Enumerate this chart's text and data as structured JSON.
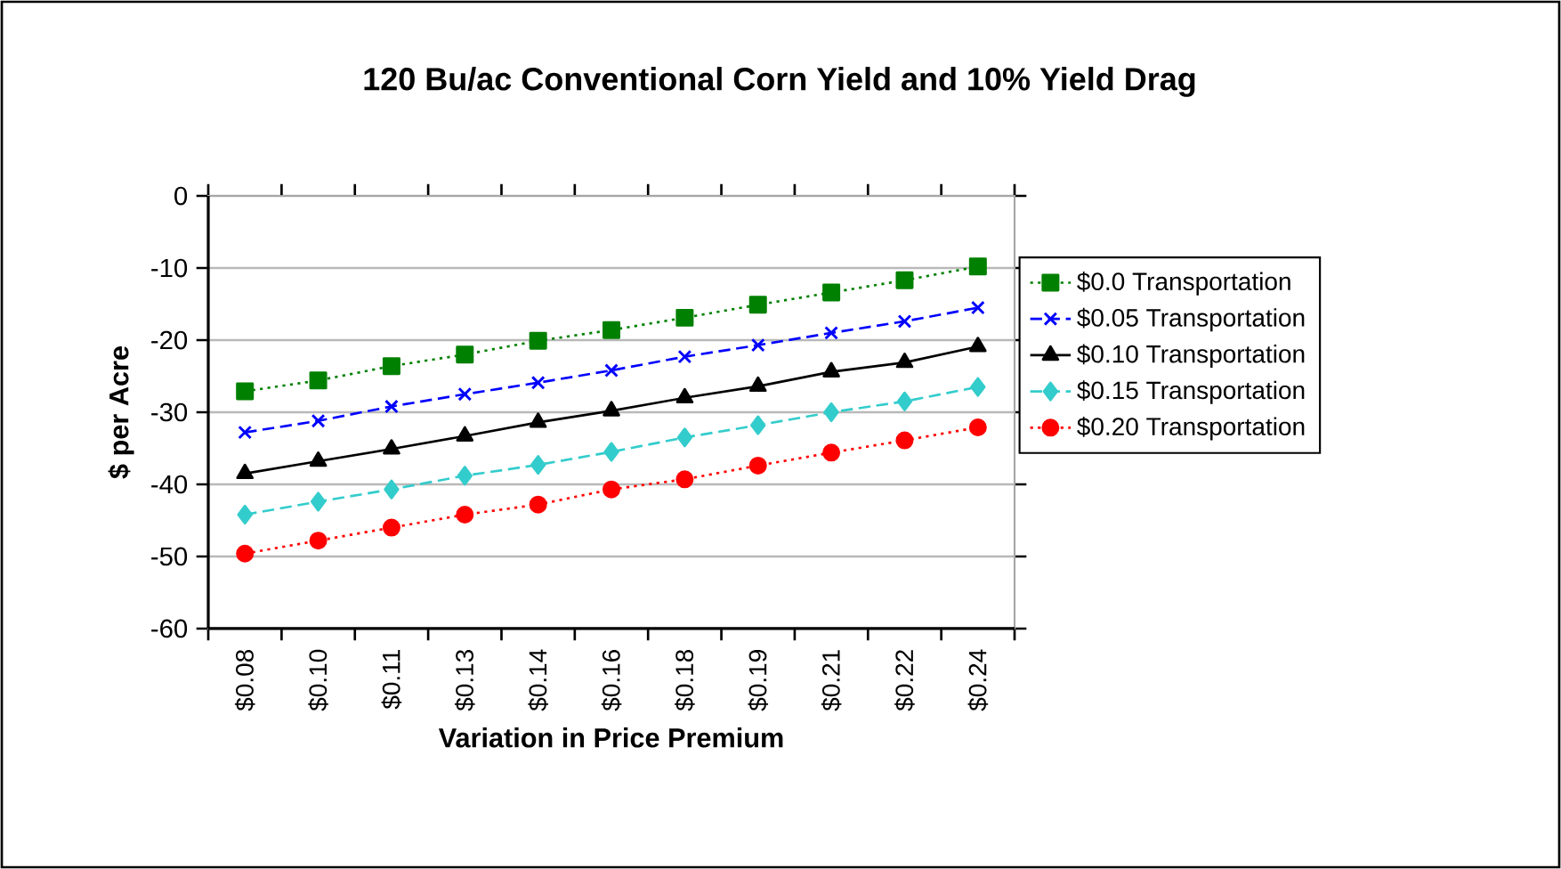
{
  "chart_data": {
    "type": "line",
    "title": "120 Bu/ac Conventional Corn Yield and 10% Yield Drag",
    "xlabel": "Variation in Price Premium",
    "ylabel": "$ per Acre",
    "categories": [
      "$0.08",
      "$0.10",
      "$0.11",
      "$0.13",
      "$0.14",
      "$0.16",
      "$0.18",
      "$0.19",
      "$0.21",
      "$0.22",
      "$0.24"
    ],
    "series": [
      {
        "name": "$0.0 Transportation",
        "color": "#008000",
        "marker": "square",
        "line_style": "dotted",
        "values": [
          -27.1,
          -25.6,
          -23.6,
          -22.0,
          -20.1,
          -18.6,
          -16.9,
          -15.1,
          -13.4,
          -11.7,
          -9.8
        ]
      },
      {
        "name": "$0.05 Transportation",
        "color": "#0000ff",
        "marker": "cross",
        "line_style": "dashed",
        "values": [
          -32.8,
          -31.2,
          -29.2,
          -27.5,
          -25.9,
          -24.2,
          -22.3,
          -20.7,
          -19.0,
          -17.4,
          -15.5
        ]
      },
      {
        "name": "$0.10 Transportation",
        "color": "#000000",
        "marker": "triangle",
        "line_style": "solid",
        "values": [
          -38.5,
          -36.8,
          -35.1,
          -33.3,
          -31.4,
          -29.8,
          -28.0,
          -26.4,
          -24.4,
          -23.1,
          -20.9
        ]
      },
      {
        "name": "$0.15 Transportation",
        "color": "#33cccc",
        "marker": "diamond",
        "line_style": "dashed",
        "values": [
          -44.2,
          -42.4,
          -40.7,
          -38.8,
          -37.3,
          -35.5,
          -33.5,
          -31.8,
          -30.0,
          -28.5,
          -26.5
        ]
      },
      {
        "name": "$0.20 Transportation",
        "color": "#ff0000",
        "marker": "circle",
        "line_style": "dotted",
        "values": [
          -49.6,
          -47.8,
          -46.0,
          -44.2,
          -42.8,
          -40.7,
          -39.3,
          -37.4,
          -35.6,
          -33.9,
          -32.1
        ]
      }
    ],
    "ylim": [
      -60,
      0
    ],
    "yticks": [
      0,
      -10,
      -20,
      -30,
      -40,
      -50,
      -60
    ],
    "grid": "y",
    "legend": "right"
  }
}
